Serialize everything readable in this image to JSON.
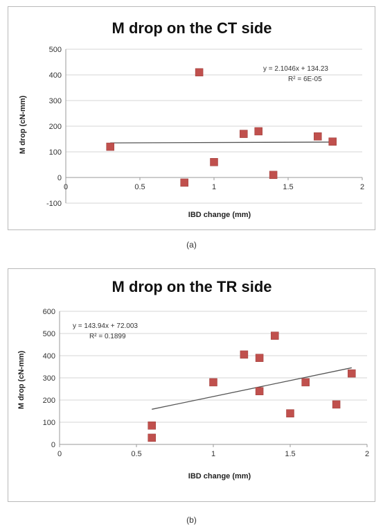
{
  "chart_data": [
    {
      "type": "scatter",
      "title": "M drop on the CT side",
      "xlabel": "IBD change (mm)",
      "ylabel": "M drop (cN-mm)",
      "xlim": [
        0,
        2
      ],
      "ylim": [
        -100,
        500
      ],
      "xticks": [
        "0",
        "0.5",
        "1",
        "1.5",
        "2"
      ],
      "yticks": [
        "-100",
        "0",
        "100",
        "200",
        "300",
        "400",
        "500"
      ],
      "xtick_values": [
        0,
        0.5,
        1,
        1.5,
        2
      ],
      "ytick_values": [
        -100,
        0,
        100,
        200,
        300,
        400,
        500
      ],
      "grid": "horizontal",
      "points": [
        {
          "x": 0.3,
          "y": 120
        },
        {
          "x": 0.8,
          "y": -20
        },
        {
          "x": 0.9,
          "y": 410
        },
        {
          "x": 1.0,
          "y": 60
        },
        {
          "x": 1.2,
          "y": 170
        },
        {
          "x": 1.3,
          "y": 180
        },
        {
          "x": 1.4,
          "y": 10
        },
        {
          "x": 1.7,
          "y": 160
        },
        {
          "x": 1.8,
          "y": 140
        }
      ],
      "trendline": {
        "slope": 2.1046,
        "intercept": 134.23,
        "x_range": [
          0.3,
          1.8
        ]
      },
      "equation": "y = 2.1046x + 134.23",
      "r_squared": "R² = 6E-05",
      "marker_color": "#c0504d"
    },
    {
      "type": "scatter",
      "title": "M drop on the TR side",
      "xlabel": "IBD change (mm)",
      "ylabel": "M drop (cN-mm)",
      "xlim": [
        0,
        2
      ],
      "ylim": [
        0,
        600
      ],
      "xticks": [
        "0",
        "0.5",
        "1",
        "1.5",
        "2"
      ],
      "yticks": [
        "0",
        "100",
        "200",
        "300",
        "400",
        "500",
        "600"
      ],
      "xtick_values": [
        0,
        0.5,
        1,
        1.5,
        2
      ],
      "ytick_values": [
        0,
        100,
        200,
        300,
        400,
        500,
        600
      ],
      "grid": "horizontal",
      "points": [
        {
          "x": 0.6,
          "y": 85
        },
        {
          "x": 0.6,
          "y": 30
        },
        {
          "x": 1.0,
          "y": 280
        },
        {
          "x": 1.2,
          "y": 405
        },
        {
          "x": 1.3,
          "y": 390
        },
        {
          "x": 1.3,
          "y": 240
        },
        {
          "x": 1.4,
          "y": 490
        },
        {
          "x": 1.5,
          "y": 140
        },
        {
          "x": 1.6,
          "y": 280
        },
        {
          "x": 1.8,
          "y": 180
        },
        {
          "x": 1.9,
          "y": 320
        }
      ],
      "trendline": {
        "slope": 143.94,
        "intercept": 72.003,
        "x_range": [
          0.6,
          1.9
        ]
      },
      "equation": "y = 143.94x + 72.003",
      "r_squared": "R² = 0.1899",
      "marker_color": "#c0504d"
    }
  ],
  "captions": [
    "(a)",
    "(b)"
  ]
}
